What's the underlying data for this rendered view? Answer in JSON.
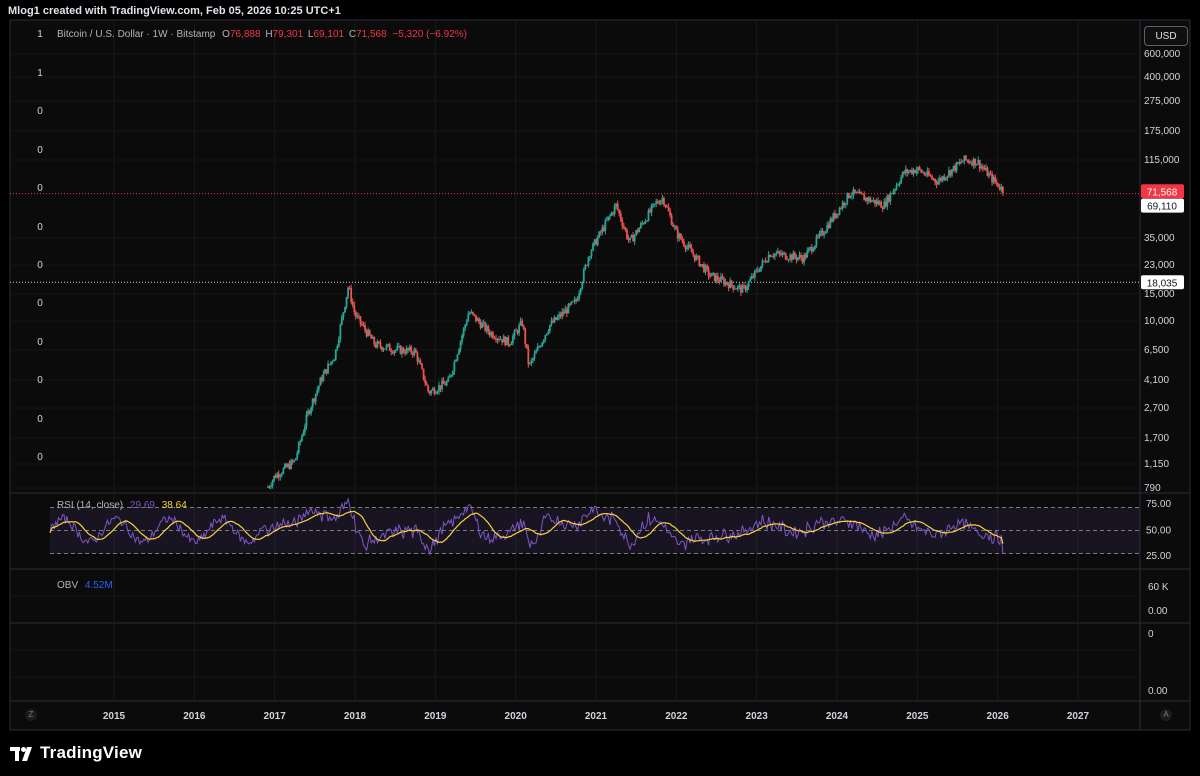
{
  "header": {
    "title": "Mlog1 created with TradingView.com, Feb 05, 2026 10:25 UTC+1"
  },
  "legend": {
    "symbol": "Bitcoin / U.S. Dollar · 1W · Bitstamp",
    "open_label": "O",
    "open": "76,888",
    "high_label": "H",
    "high": "79,301",
    "low_label": "L",
    "low": "69,101",
    "close_label": "C",
    "close": "71,568",
    "change": "−5,320 (−6.92%)"
  },
  "currency_button": "USD",
  "left_scale_labels": [
    "1",
    "1",
    "0",
    "0",
    "0",
    "0",
    "0",
    "0",
    "0",
    "0",
    "0",
    "0"
  ],
  "price_axis": {
    "tick_labels": [
      "600,000",
      "400,000",
      "275,000",
      "175,000",
      "115,000",
      "71,568",
      "69,110",
      "35,000",
      "23,000",
      "18,035",
      "15,000",
      "10,000",
      "6,500",
      "4,100",
      "2,700",
      "1,700",
      "1,150",
      "790"
    ],
    "last_price_label": "71,568",
    "horizontal_level_labels": [
      "69,110",
      "18,035"
    ]
  },
  "rsi": {
    "label": "RSI (14, close)",
    "value": "29.69",
    "ma_value": "38.64",
    "axis_labels": [
      "75.00",
      "50.00",
      "25.00"
    ]
  },
  "obv": {
    "label": "OBV",
    "value": "4.52M",
    "axis_labels": [
      "60 K",
      "0.00"
    ]
  },
  "extra_pane": {
    "axis_labels": [
      "0",
      "0.00"
    ]
  },
  "time_axis": {
    "labels": [
      "2015",
      "2016",
      "2017",
      "2018",
      "2019",
      "2020",
      "2021",
      "2022",
      "2023",
      "2024",
      "2025",
      "2026",
      "2027"
    ]
  },
  "corner_left": "Z",
  "corner_right": "A",
  "brand": "TradingView",
  "colors": {
    "background": "#000000",
    "up": "#26a69a",
    "down": "#ef5350",
    "rsi_line": "#7e57c2",
    "rsi_ma": "#f7d33c",
    "obv": "#2962ff",
    "last_price_bg": "#f23645"
  },
  "chart_data": [
    {
      "type": "candlestick",
      "title": "Bitcoin / U.S. Dollar · 1W · Bitstamp",
      "scale": "log",
      "ylim": [
        790,
        600000
      ],
      "x_range": [
        "2014-06",
        "2027-07"
      ],
      "approx_close_path": [
        [
          "2016-12",
          800
        ],
        [
          "2017-01",
          950
        ],
        [
          "2017-04",
          1200
        ],
        [
          "2017-06",
          2500
        ],
        [
          "2017-08",
          4200
        ],
        [
          "2017-10",
          6000
        ],
        [
          "2017-12",
          17000
        ],
        [
          "2018-01",
          11000
        ],
        [
          "2018-04",
          7000
        ],
        [
          "2018-07",
          6500
        ],
        [
          "2018-10",
          6300
        ],
        [
          "2018-12",
          3400
        ],
        [
          "2019-03",
          4000
        ],
        [
          "2019-06",
          11500
        ],
        [
          "2019-09",
          8500
        ],
        [
          "2019-12",
          7200
        ],
        [
          "2020-02",
          9800
        ],
        [
          "2020-03",
          5000
        ],
        [
          "2020-06",
          9300
        ],
        [
          "2020-10",
          13500
        ],
        [
          "2020-12",
          28000
        ],
        [
          "2021-04",
          58000
        ],
        [
          "2021-06",
          33000
        ],
        [
          "2021-10",
          60000
        ],
        [
          "2021-11",
          65000
        ],
        [
          "2022-01",
          38000
        ],
        [
          "2022-06",
          20000
        ],
        [
          "2022-11",
          16000
        ],
        [
          "2023-03",
          28000
        ],
        [
          "2023-08",
          26000
        ],
        [
          "2023-10",
          34000
        ],
        [
          "2024-03",
          70000
        ],
        [
          "2024-08",
          58000
        ],
        [
          "2024-11",
          95000
        ],
        [
          "2025-01",
          100000
        ],
        [
          "2025-04",
          83000
        ],
        [
          "2025-08",
          115000
        ],
        [
          "2025-10",
          112000
        ],
        [
          "2025-12",
          88000
        ],
        [
          "2026-02",
          71568
        ]
      ],
      "horizontal_levels": [
        69110,
        18035
      ],
      "last_price": 71568
    },
    {
      "type": "line",
      "title": "RSI (14, close)",
      "ylim": [
        20,
        80
      ],
      "bands": [
        70,
        50,
        30
      ],
      "series": [
        {
          "name": "RSI",
          "last": 29.69
        },
        {
          "name": "RSI MA",
          "last": 38.64
        }
      ]
    }
  ]
}
